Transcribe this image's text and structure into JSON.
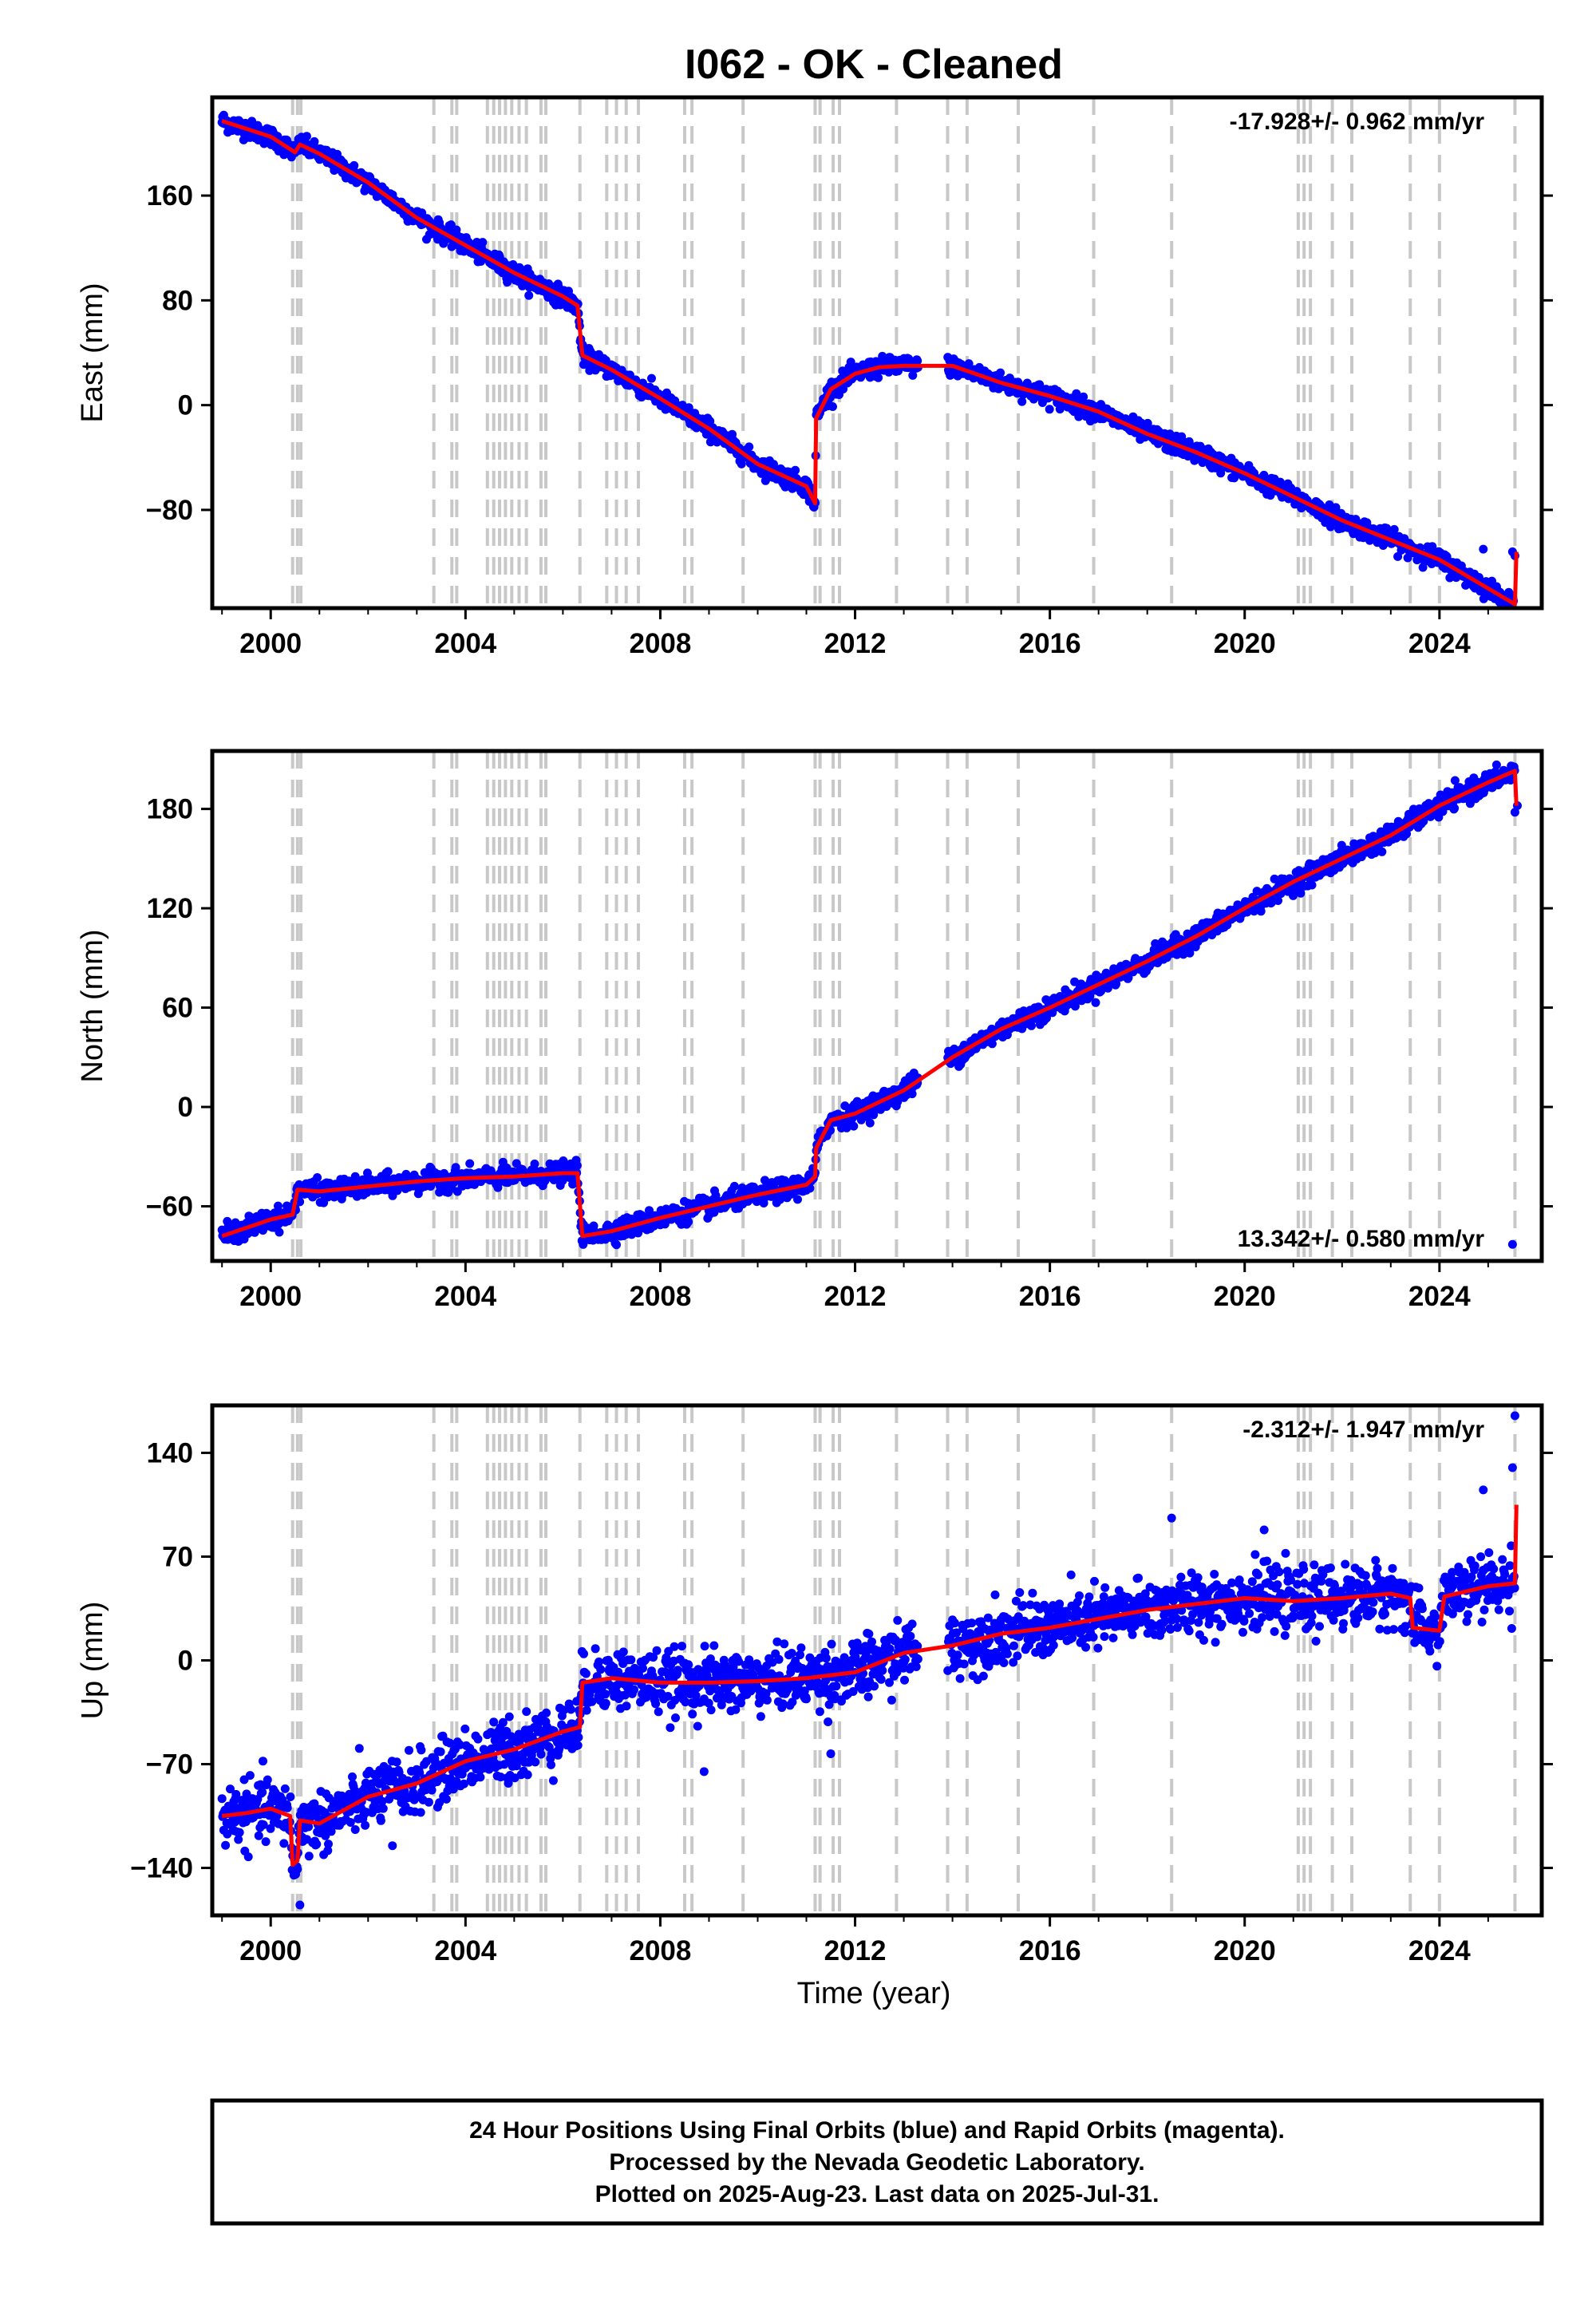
{
  "chart_data": {
    "type": "scatter",
    "title": "I062  - OK - Cleaned",
    "xlabel": "Time (year)",
    "xlim": [
      1998.8,
      2026.1
    ],
    "xticks": [
      2000,
      2004,
      2008,
      2012,
      2016,
      2020,
      2024
    ],
    "colors": {
      "daily": "#0000ff",
      "model": "#ff0000",
      "events": "#c8c8c8",
      "frame": "#000000"
    },
    "events": [
      2000.45,
      2000.55,
      2000.62,
      2003.35,
      2003.72,
      2003.82,
      2004.45,
      2004.58,
      2004.7,
      2004.82,
      2004.95,
      2005.1,
      2005.25,
      2005.55,
      2005.65,
      2006.35,
      2006.9,
      2007.1,
      2007.3,
      2007.55,
      2008.5,
      2008.65,
      2009.7,
      2011.18,
      2011.28,
      2011.55,
      2011.68,
      2012.85,
      2013.9,
      2014.3,
      2015.35,
      2016.9,
      2018.5,
      2021.1,
      2021.22,
      2021.35,
      2021.8,
      2022.2,
      2023.4,
      2024.0,
      2025.55
    ],
    "panels": [
      {
        "ylabel": "East (mm)",
        "ylim": [
          -155,
          235
        ],
        "yticks": [
          -80,
          0,
          80,
          160
        ],
        "rate": "-17.928+/- 0.962 mm/yr",
        "rate_position": "top-right",
        "noise": 3.5,
        "outliers": [
          [
            2024.9,
            -110
          ],
          [
            2025.5,
            -112
          ],
          [
            2025.55,
            -115
          ]
        ],
        "model": [
          [
            1999.0,
            217
          ],
          [
            1999.5,
            211
          ],
          [
            2000.0,
            205
          ],
          [
            2000.5,
            193
          ],
          [
            2000.6,
            199
          ],
          [
            2001.0,
            192
          ],
          [
            2002.0,
            170
          ],
          [
            2003.0,
            143
          ],
          [
            2004.0,
            122
          ],
          [
            2005.0,
            101
          ],
          [
            2006.0,
            83
          ],
          [
            2006.3,
            76
          ],
          [
            2006.4,
            38
          ],
          [
            2007.0,
            27
          ],
          [
            2008.0,
            5
          ],
          [
            2009.0,
            -18
          ],
          [
            2010.0,
            -45
          ],
          [
            2011.0,
            -62
          ],
          [
            2011.18,
            -75
          ],
          [
            2011.2,
            -10
          ],
          [
            2011.5,
            12
          ],
          [
            2012.0,
            24
          ],
          [
            2012.5,
            29
          ],
          [
            2013.0,
            30
          ],
          [
            2013.9,
            30
          ],
          [
            2014.0,
            30
          ],
          [
            2015.0,
            17
          ],
          [
            2016.0,
            7
          ],
          [
            2017.0,
            -5
          ],
          [
            2018.0,
            -22
          ],
          [
            2019.0,
            -36
          ],
          [
            2020.0,
            -52
          ],
          [
            2021.0,
            -70
          ],
          [
            2022.0,
            -88
          ],
          [
            2023.0,
            -103
          ],
          [
            2024.0,
            -118
          ],
          [
            2025.0,
            -140
          ],
          [
            2025.55,
            -152
          ],
          [
            2025.58,
            -112
          ]
        ]
      },
      {
        "ylabel": "North (mm)",
        "ylim": [
          -93,
          215
        ],
        "yticks": [
          -60,
          0,
          60,
          120,
          180
        ],
        "rate": "13.342+/- 0.580 mm/yr",
        "rate_position": "bottom-right",
        "noise": 3,
        "outliers": [
          [
            2025.5,
            -83
          ],
          [
            2025.55,
            178
          ],
          [
            2025.6,
            182
          ]
        ],
        "model": [
          [
            1999.0,
            -78
          ],
          [
            2000.0,
            -68
          ],
          [
            2000.45,
            -65
          ],
          [
            2000.55,
            -50
          ],
          [
            2001.0,
            -51
          ],
          [
            2002.0,
            -48
          ],
          [
            2003.0,
            -45
          ],
          [
            2004.0,
            -43
          ],
          [
            2005.0,
            -42
          ],
          [
            2006.0,
            -40
          ],
          [
            2006.3,
            -40
          ],
          [
            2006.4,
            -78
          ],
          [
            2007.0,
            -75
          ],
          [
            2008.0,
            -67
          ],
          [
            2009.0,
            -60
          ],
          [
            2009.7,
            -55
          ],
          [
            2010.0,
            -53
          ],
          [
            2011.0,
            -47
          ],
          [
            2011.18,
            -42
          ],
          [
            2011.2,
            -25
          ],
          [
            2011.5,
            -8
          ],
          [
            2012.0,
            -4
          ],
          [
            2013.0,
            10
          ],
          [
            2014.0,
            30
          ],
          [
            2015.0,
            47
          ],
          [
            2016.0,
            60
          ],
          [
            2017.0,
            74
          ],
          [
            2018.0,
            88
          ],
          [
            2019.0,
            103
          ],
          [
            2020.0,
            120
          ],
          [
            2021.0,
            136
          ],
          [
            2022.0,
            150
          ],
          [
            2023.0,
            164
          ],
          [
            2024.0,
            182
          ],
          [
            2025.0,
            196
          ],
          [
            2025.55,
            203
          ],
          [
            2025.58,
            182
          ]
        ]
      },
      {
        "ylabel": "Up (mm)",
        "ylim": [
          -172,
          172
        ],
        "yticks": [
          -140,
          -70,
          0,
          70,
          140
        ],
        "rate": "-2.312+/- 1.947 mm/yr",
        "rate_position": "top-right",
        "noise": 10,
        "outliers": [
          [
            2025.55,
            165
          ],
          [
            2025.5,
            130
          ],
          [
            2024.9,
            115
          ],
          [
            2018.5,
            96
          ],
          [
            2020.4,
            88
          ],
          [
            2011.5,
            -63
          ],
          [
            2008.9,
            -75
          ],
          [
            2004.9,
            -38
          ],
          [
            2002.5,
            -125
          ],
          [
            2000.6,
            -165
          ]
        ],
        "model": [
          [
            1999.0,
            -105
          ],
          [
            1999.5,
            -103
          ],
          [
            2000.0,
            -100
          ],
          [
            2000.4,
            -105
          ],
          [
            2000.45,
            -138
          ],
          [
            2000.55,
            -135
          ],
          [
            2000.6,
            -108
          ],
          [
            2001.0,
            -110
          ],
          [
            2002.0,
            -92
          ],
          [
            2003.0,
            -83
          ],
          [
            2004.0,
            -68
          ],
          [
            2005.0,
            -60
          ],
          [
            2006.0,
            -48
          ],
          [
            2006.35,
            -45
          ],
          [
            2006.4,
            -15
          ],
          [
            2007.0,
            -12
          ],
          [
            2008.0,
            -15
          ],
          [
            2009.0,
            -15
          ],
          [
            2010.0,
            -14
          ],
          [
            2011.0,
            -12
          ],
          [
            2012.0,
            -8
          ],
          [
            2013.0,
            5
          ],
          [
            2014.0,
            10
          ],
          [
            2015.0,
            18
          ],
          [
            2016.0,
            22
          ],
          [
            2017.0,
            28
          ],
          [
            2018.0,
            34
          ],
          [
            2019.0,
            38
          ],
          [
            2020.0,
            42
          ],
          [
            2021.0,
            40
          ],
          [
            2022.0,
            42
          ],
          [
            2023.0,
            45
          ],
          [
            2023.4,
            42
          ],
          [
            2023.45,
            22
          ],
          [
            2024.0,
            20
          ],
          [
            2024.1,
            43
          ],
          [
            2025.0,
            50
          ],
          [
            2025.55,
            52
          ],
          [
            2025.58,
            105
          ]
        ]
      }
    ]
  },
  "footer": {
    "line1": "24 Hour Positions Using Final Orbits (blue) and Rapid Orbits (magenta).",
    "line2": "Processed by the Nevada Geodetic Laboratory.",
    "line3": "Plotted on 2025-Aug-23. Last data on 2025-Jul-31."
  }
}
